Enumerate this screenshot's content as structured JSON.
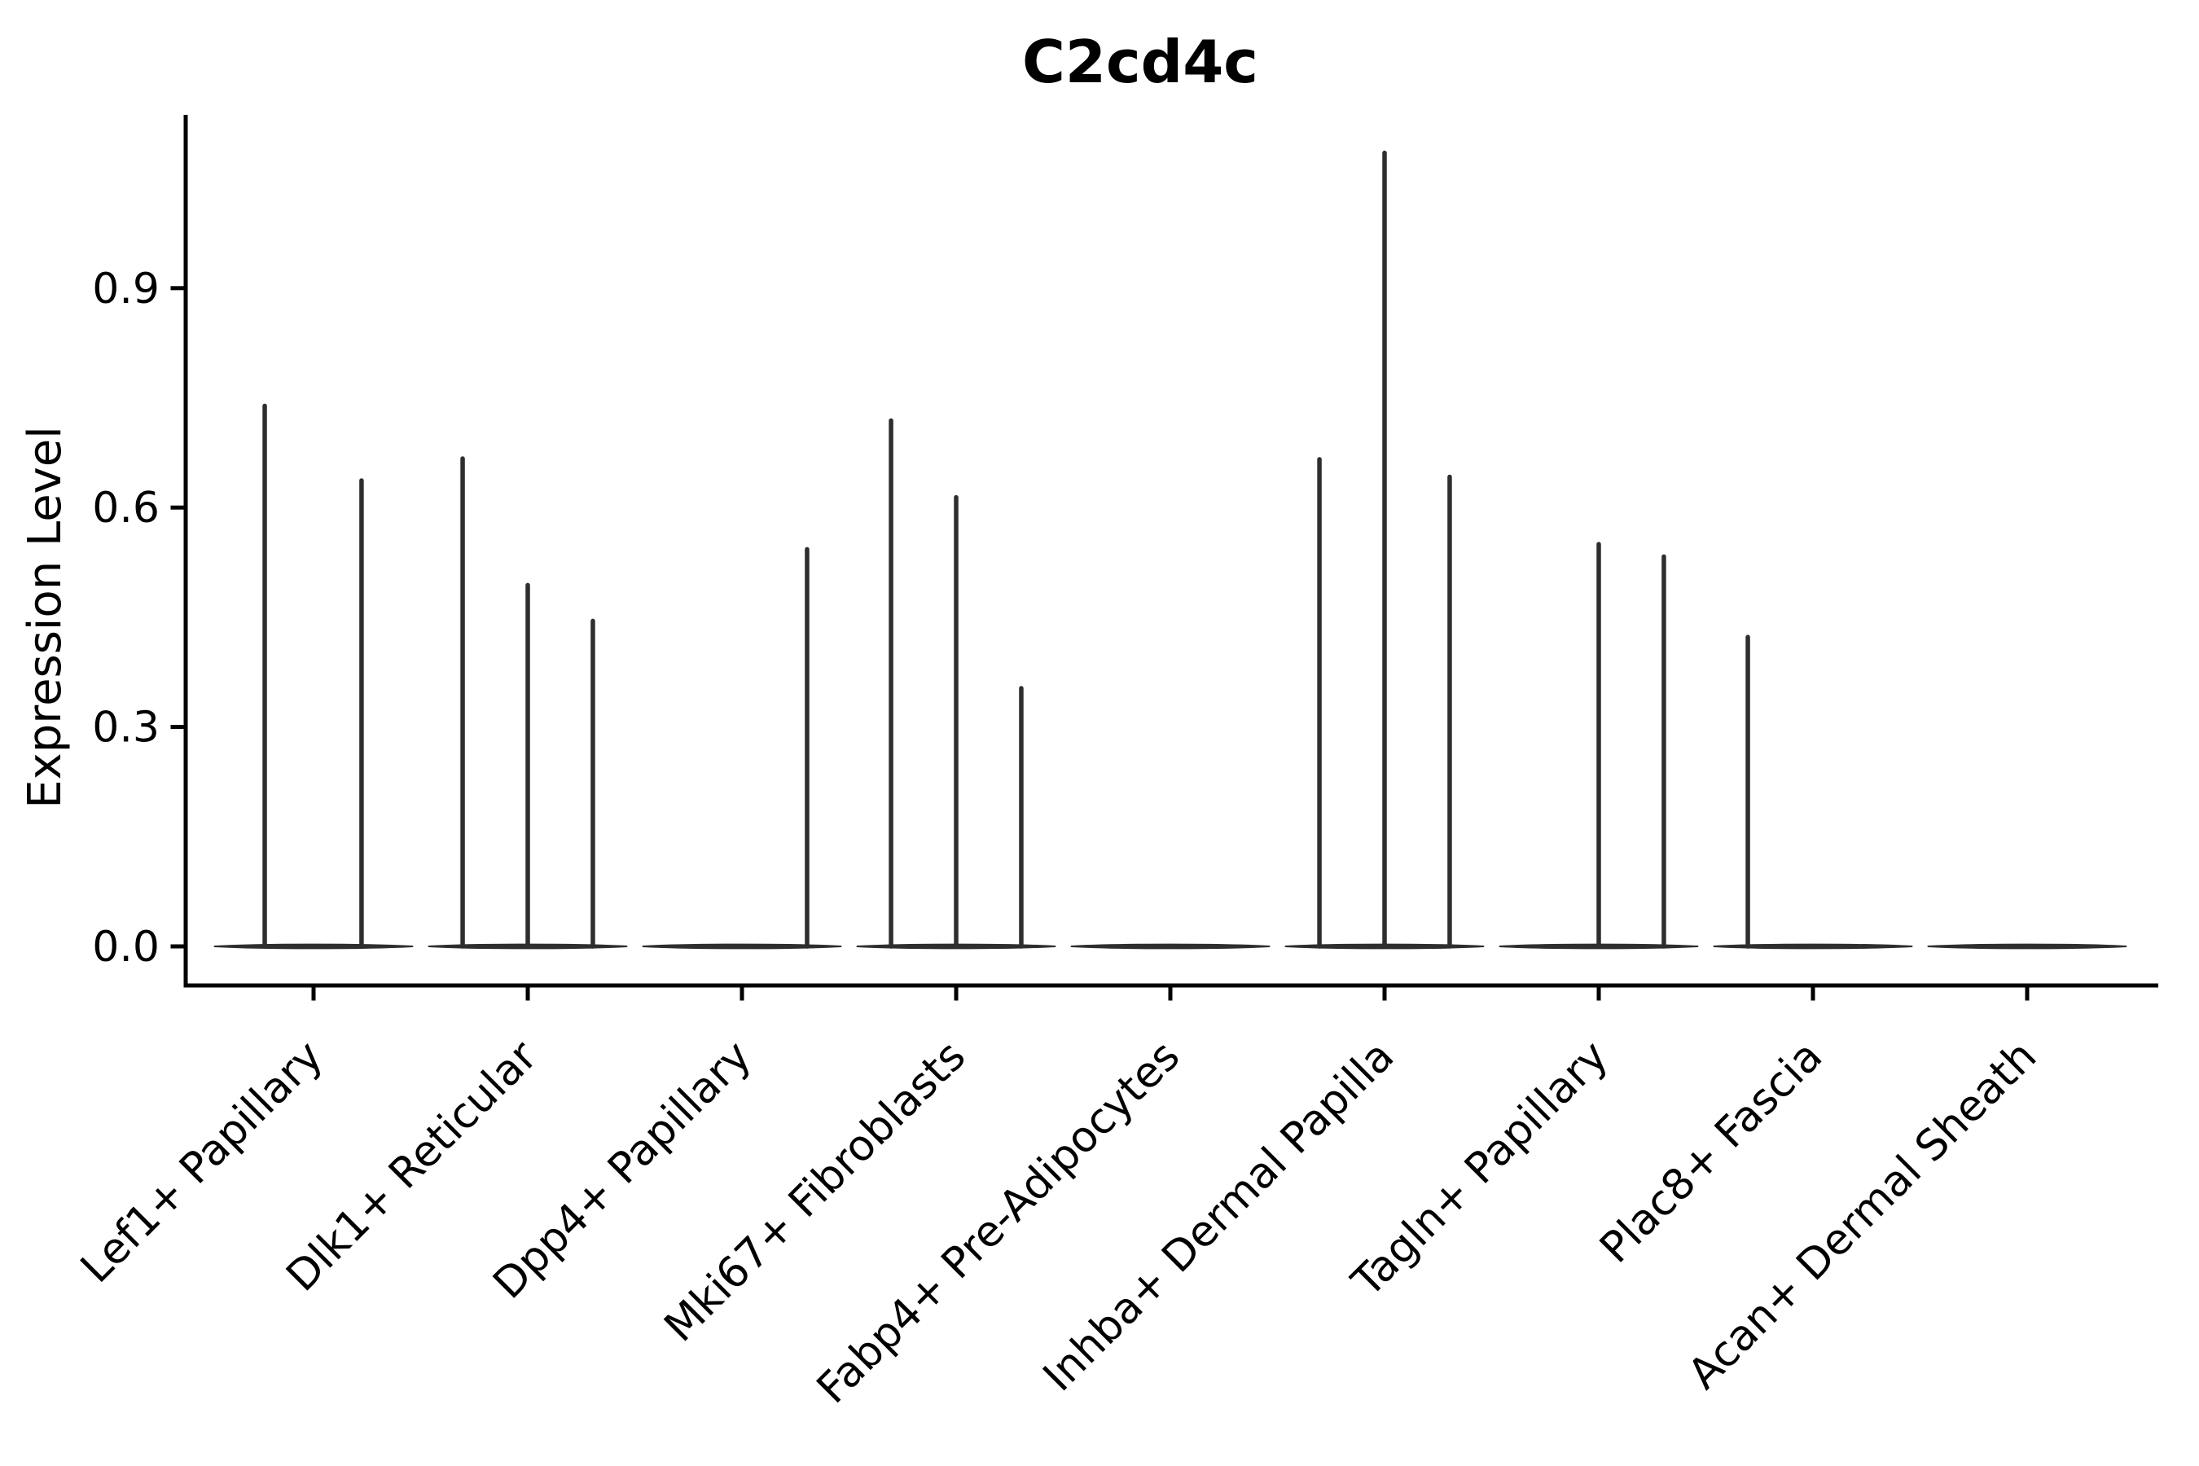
{
  "chart_data": {
    "type": "violin",
    "title": "C2cd4c",
    "ylabel": "Expression Level",
    "xlabel": "",
    "grid": false,
    "legend": "none",
    "ylim": [
      -0.054,
      1.137
    ],
    "ytick_values": [
      0.0,
      0.3,
      0.6,
      0.9
    ],
    "ytick_labels": [
      "0.0",
      "0.3",
      "0.6",
      "0.9"
    ],
    "xtick_rotation_deg": 45,
    "categories": [
      "Lef1+ Papillary",
      "Dlk1+ Reticular",
      "Dpp4+ Papillary",
      "Mki67+ Fibroblasts",
      "Fabp4+ Pre-Adipocytes",
      "Inhba+ Dermal Papilla",
      "Tagln+ Papillary",
      "Plac8+ Fascia",
      "Acan+ Dermal Sheath"
    ],
    "violins": [
      {
        "category": "Lef1+ Papillary",
        "base_value": 0.0,
        "base_halfwidth_frac": 0.462,
        "spikes": [
          {
            "dx_frac": -0.228,
            "max": 0.739
          },
          {
            "dx_frac": 0.224,
            "max": 0.637
          }
        ]
      },
      {
        "category": "Dlk1+ Reticular",
        "base_value": 0.0,
        "base_halfwidth_frac": 0.462,
        "spikes": [
          {
            "dx_frac": -0.304,
            "max": 0.667
          },
          {
            "dx_frac": 0.0,
            "max": 0.494
          },
          {
            "dx_frac": 0.304,
            "max": 0.445
          }
        ]
      },
      {
        "category": "Dpp4+ Papillary",
        "base_value": 0.0,
        "base_halfwidth_frac": 0.462,
        "spikes": [
          {
            "dx_frac": 0.304,
            "max": 0.543
          }
        ]
      },
      {
        "category": "Mki67+ Fibroblasts",
        "base_value": 0.0,
        "base_halfwidth_frac": 0.462,
        "spikes": [
          {
            "dx_frac": -0.304,
            "max": 0.719
          },
          {
            "dx_frac": 0.0,
            "max": 0.614
          },
          {
            "dx_frac": 0.304,
            "max": 0.353
          }
        ]
      },
      {
        "category": "Fabp4+ Pre-Adipocytes",
        "base_value": 0.0,
        "base_halfwidth_frac": 0.462,
        "spikes": []
      },
      {
        "category": "Inhba+ Dermal Papilla",
        "base_value": 0.0,
        "base_halfwidth_frac": 0.462,
        "spikes": [
          {
            "dx_frac": -0.304,
            "max": 0.666
          },
          {
            "dx_frac": 0.0,
            "max": 1.085
          },
          {
            "dx_frac": 0.304,
            "max": 0.642
          }
        ]
      },
      {
        "category": "Tagln+ Papillary",
        "base_value": 0.0,
        "base_halfwidth_frac": 0.462,
        "spikes": [
          {
            "dx_frac": 0.0,
            "max": 0.55
          },
          {
            "dx_frac": 0.304,
            "max": 0.533
          }
        ]
      },
      {
        "category": "Plac8+ Fascia",
        "base_value": 0.0,
        "base_halfwidth_frac": 0.462,
        "spikes": [
          {
            "dx_frac": -0.304,
            "max": 0.423
          }
        ]
      },
      {
        "category": "Acan+ Dermal Sheath",
        "base_value": 0.0,
        "base_halfwidth_frac": 0.462,
        "spikes": []
      }
    ],
    "colors": {
      "violin_line": "#2e2e2e",
      "axis": "#000000",
      "text": "#000000",
      "background": "#ffffff"
    }
  }
}
